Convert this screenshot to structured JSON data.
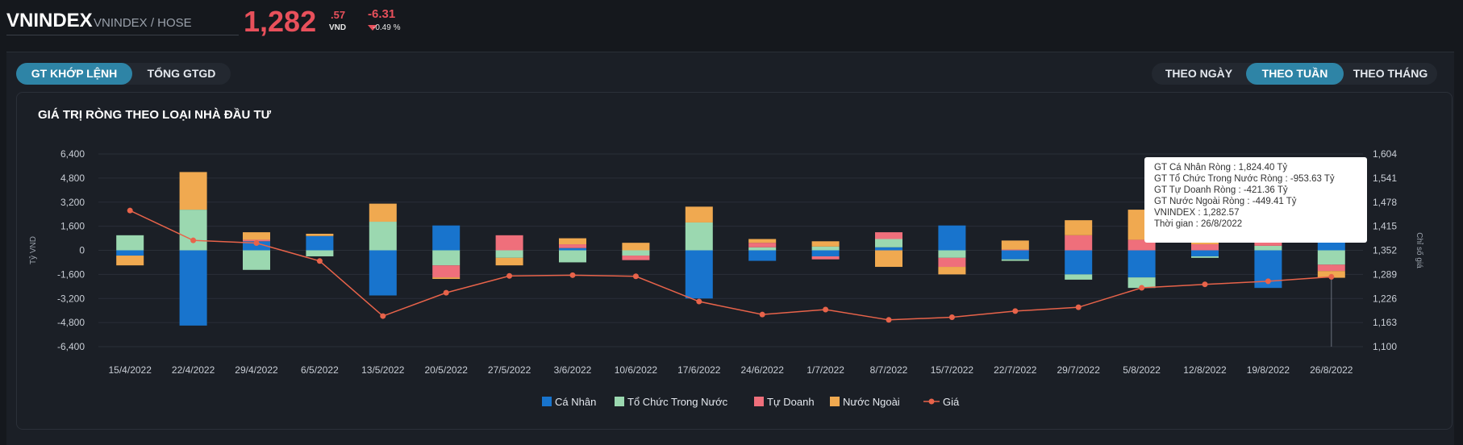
{
  "header": {
    "ticker": "VNINDEX",
    "exchange": "VNINDEX / HOSE",
    "price_int": "1,282",
    "price_dec": ".57",
    "currency": "VND",
    "change": "-6.31",
    "change_pct": "-0.49 %"
  },
  "tabs_left": [
    {
      "label": "GT KHỚP LỆNH",
      "active": true
    },
    {
      "label": "TỔNG GTGD",
      "active": false
    }
  ],
  "tabs_right": [
    {
      "label": "THEO NGÀY",
      "active": false
    },
    {
      "label": "THEO TUẦN",
      "active": true
    },
    {
      "label": "THEO THÁNG",
      "active": false
    }
  ],
  "card_title": "GIÁ TRỊ RÒNG THEO LOẠI NHÀ ĐẦU TƯ",
  "chart_data": {
    "type": "bar",
    "stacked": true,
    "categories": [
      "15/4/2022",
      "22/4/2022",
      "29/4/2022",
      "6/5/2022",
      "13/5/2022",
      "20/5/2022",
      "27/5/2022",
      "3/6/2022",
      "10/6/2022",
      "17/6/2022",
      "24/6/2022",
      "1/7/2022",
      "8/7/2022",
      "15/7/2022",
      "22/7/2022",
      "29/7/2022",
      "5/8/2022",
      "12/8/2022",
      "19/8/2022",
      "26/8/2022"
    ],
    "series": [
      {
        "name": "Cá Nhân",
        "color": "#1874cd",
        "values": [
          -350,
          -5000,
          600,
          950,
          -3000,
          1650,
          0,
          150,
          0,
          -3200,
          -700,
          -400,
          200,
          1650,
          -600,
          -1600,
          -1800,
          -400,
          -2500,
          1824.4
        ]
      },
      {
        "name": "Tổ Chức Trong Nước",
        "color": "#9bd8b0",
        "values": [
          1000,
          2700,
          -1300,
          -400,
          1900,
          -1000,
          -500,
          -800,
          -350,
          1850,
          200,
          250,
          550,
          -500,
          -100,
          -350,
          -700,
          -100,
          300,
          -953.63
        ]
      },
      {
        "name": "Tự Doanh",
        "color": "#ef6f7b",
        "values": [
          0,
          0,
          100,
          0,
          0,
          -800,
          1000,
          250,
          -300,
          0,
          300,
          -200,
          450,
          -600,
          50,
          1000,
          700,
          400,
          350,
          -421.36
        ]
      },
      {
        "name": "Nước Ngoài",
        "color": "#f0a950",
        "values": [
          -650,
          2500,
          500,
          150,
          1200,
          -100,
          -500,
          400,
          500,
          1050,
          250,
          350,
          -1100,
          -500,
          600,
          1000,
          2000,
          1000,
          800,
          -449.41
        ]
      }
    ],
    "line": {
      "name": "Giá",
      "color": "#e8634a",
      "values": [
        1456,
        1378,
        1371,
        1324,
        1180,
        1241,
        1285,
        1287,
        1284,
        1218,
        1184,
        1197,
        1170,
        1177,
        1193,
        1203,
        1254,
        1263,
        1271,
        1282.57
      ]
    },
    "y_left": {
      "ticks": [
        "6,400",
        "4,800",
        "3,200",
        "1,600",
        "0",
        "-1,600",
        "-3,200",
        "-4,800",
        "-6,400"
      ],
      "min": -6400,
      "max": 6400,
      "label": "Tỷ VND"
    },
    "y_right": {
      "ticks": [
        "1,604",
        "1,541",
        "1,478",
        "1,415",
        "1,352",
        "1,289",
        "1,226",
        "1,163",
        "1,100"
      ],
      "min": 1100,
      "max": 1604,
      "label": "Chỉ số giá"
    },
    "legend": [
      "Cá Nhân",
      "Tổ Chức Trong Nước",
      "Tự Doanh",
      "Nước Ngoài",
      "Giá"
    ],
    "legend_position": "bottom"
  },
  "tooltip": {
    "lines": [
      "GT Cá Nhân Ròng  : 1,824.40 Tỷ",
      "GT Tổ Chức Trong Nước Ròng : -953.63 Tỷ",
      "GT Tự Doanh Ròng : -421.36 Tỷ",
      "GT Nước Ngoài Ròng : -449.41 Tỷ",
      "VNINDEX : 1,282.57",
      "Thời gian : 26/8/2022"
    ]
  }
}
